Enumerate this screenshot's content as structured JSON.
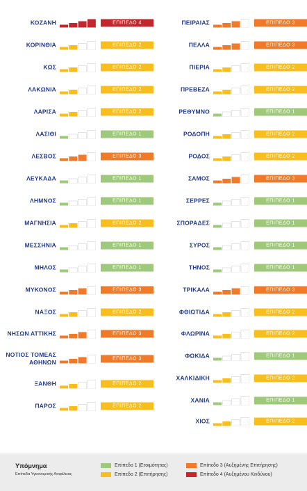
{
  "colors": {
    "level1": "#9ec97a",
    "level2": "#f7be1e",
    "level3": "#ef7b2a",
    "level4": "#c1272d",
    "empty": "#dddddd",
    "name": "#233a8c"
  },
  "level_labels": {
    "1": "ΕΠΙΠΕΔΟ 1",
    "2": "ΕΠΙΠΕΔΟ 2",
    "3": "ΕΠΙΠΕΔΟ 3",
    "4": "ΕΠΙΠΕΔΟ 4"
  },
  "left_column": [
    {
      "name": "ΚΟΖΑΝΗ",
      "level": 4
    },
    {
      "name": "ΚΟΡΙΝΘΙΑ",
      "level": 2
    },
    {
      "name": "ΚΩΣ",
      "level": 2
    },
    {
      "name": "ΛΑΚΩΝΙΑ",
      "level": 2
    },
    {
      "name": "ΛΑΡΙΣΑ",
      "level": 2
    },
    {
      "name": "ΛΑΣΙΘΙ",
      "level": 1
    },
    {
      "name": "ΛΕΣΒΟΣ",
      "level": 3
    },
    {
      "name": "ΛΕΥΚΑΔΑ",
      "level": 1
    },
    {
      "name": "ΛΗΜΝΟΣ",
      "level": 1
    },
    {
      "name": "ΜΑΓΝΗΣΙΑ",
      "level": 2
    },
    {
      "name": "ΜΕΣΣΗΝΙΑ",
      "level": 1
    },
    {
      "name": "ΜΗΛΟΣ",
      "level": 1
    },
    {
      "name": "ΜΥΚΟΝΟΣ",
      "level": 3
    },
    {
      "name": "ΝΑΞΟΣ",
      "level": 2
    },
    {
      "name": "ΝΗΣΩΝ ΑΤΤΙΚΗΣ",
      "level": 3
    },
    {
      "name": "ΝΟΤΙΟΣ ΤΟΜΕΑΣ",
      "name2": "ΑΘΗΝΩΝ",
      "level": 3
    },
    {
      "name": "ΞΑΝΘΗ",
      "level": 2
    },
    {
      "name": "ΠΑΡΟΣ",
      "level": 2
    }
  ],
  "right_column": [
    {
      "name": "ΠΕΙΡΑΙΑΣ",
      "level": 3
    },
    {
      "name": "ΠΕΛΛΑ",
      "level": 3
    },
    {
      "name": "ΠΙΕΡΙΑ",
      "level": 2
    },
    {
      "name": "ΠΡΕΒΕΖΑ",
      "level": 2
    },
    {
      "name": "ΡΕΘΥΜΝΟ",
      "level": 1
    },
    {
      "name": "ΡΟΔΟΠΗ",
      "level": 2
    },
    {
      "name": "ΡΟΔΟΣ",
      "level": 2
    },
    {
      "name": "ΣΑΜΟΣ",
      "level": 3
    },
    {
      "name": "ΣΕΡΡΕΣ",
      "level": 1
    },
    {
      "name": "ΣΠΟΡΑΔΕΣ",
      "level": 1
    },
    {
      "name": "ΣΥΡΟΣ",
      "level": 1
    },
    {
      "name": "ΤΗΝΟΣ",
      "level": 1
    },
    {
      "name": "ΤΡΙΚΑΛΑ",
      "level": 3
    },
    {
      "name": "ΦΘΙΩΤΙΔΑ",
      "level": 2
    },
    {
      "name": "ΦΛΩΡΙΝΑ",
      "level": 2
    },
    {
      "name": "ΦΩΚΙΔΑ",
      "level": 1
    },
    {
      "name": "ΧΑΛΚΙΔΙΚΗ",
      "level": 2
    },
    {
      "name": "ΧΑΝΙΑ",
      "level": 1
    },
    {
      "name": "ΧΙΟΣ",
      "level": 2
    }
  ],
  "legend": {
    "title": "Υπόμνημα",
    "subtitle": "Επίπεδα Υγειονομικής Ασφάλειας",
    "items": [
      {
        "label": "Επίπεδο 1 (Ετοιμότητας)",
        "level": 1
      },
      {
        "label": "Επίπεδο 2 (Επιτήρησης)",
        "level": 2
      },
      {
        "label": "Επίπεδο 3 (Αυξημένης Επιτήρησης)",
        "level": 3
      },
      {
        "label": "Επίπεδο 4 (Αυξημένου Κινδύνου)",
        "level": 4
      }
    ]
  }
}
